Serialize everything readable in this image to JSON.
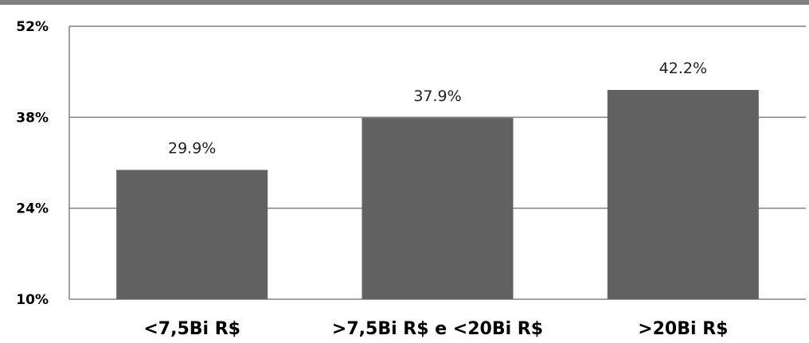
{
  "chart_data": {
    "type": "bar",
    "categories": [
      "<7,5Bi R$",
      ">7,5Bi R$ e <20Bi R$",
      ">20Bi R$"
    ],
    "values": [
      29.9,
      37.9,
      42.2
    ],
    "data_labels": [
      "29.9%",
      "37.9%",
      "42.2%"
    ],
    "ylim": [
      10,
      52
    ],
    "yticks": [
      10,
      24,
      38,
      52
    ],
    "ytick_labels": [
      "10%",
      "24%",
      "38%",
      "52%"
    ],
    "grid": true,
    "legend": "none",
    "bar_color": "#616161",
    "grid_color": "#808080",
    "header_band_color": "#808080"
  }
}
